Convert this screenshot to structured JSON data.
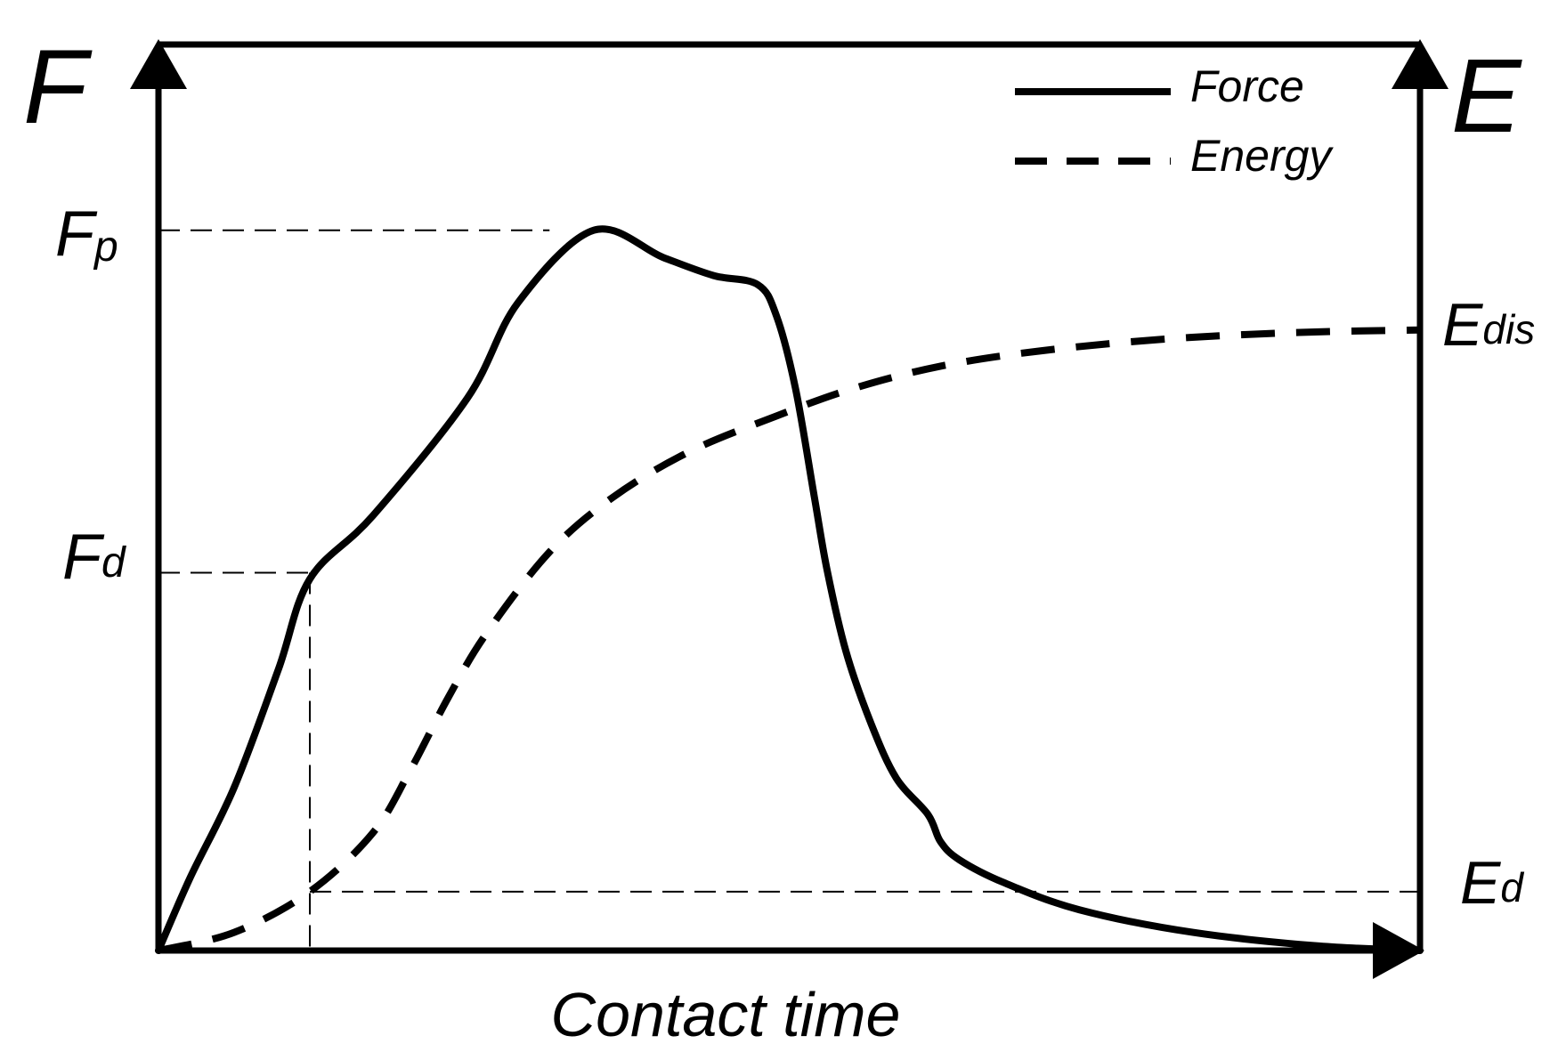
{
  "chart_data": {
    "type": "line",
    "title": "",
    "xlabel": "Contact time",
    "ylabel_left": "F",
    "ylabel_right": "E",
    "xlim": [
      0,
      1
    ],
    "ylim_left": [
      0,
      1
    ],
    "ylim_right": [
      0,
      1
    ],
    "grid": false,
    "legend_position": "top-right",
    "legend": [
      {
        "label": "Force",
        "style": "solid"
      },
      {
        "label": "Energy",
        "style": "dashed"
      }
    ],
    "reference_lines": {
      "Fp": {
        "label_main": "F",
        "label_sub": "p",
        "axis": "left",
        "value": 0.795
      },
      "Fd": {
        "label_main": "F",
        "label_sub": "d",
        "axis": "left",
        "value": 0.417
      },
      "td": {
        "axis": "x",
        "value": 0.12
      },
      "Ed": {
        "label_main": "E",
        "label_sub": "d",
        "axis": "right",
        "value": 0.065
      },
      "Edis": {
        "label_main": "E",
        "label_sub": "dis",
        "axis": "right",
        "value": 0.685
      }
    },
    "series": [
      {
        "name": "Force",
        "style": "solid",
        "x": [
          0,
          0.025,
          0.06,
          0.095,
          0.12,
          0.17,
          0.245,
          0.285,
          0.345,
          0.4,
          0.44,
          0.475,
          0.49,
          0.505,
          0.52,
          0.53,
          0.545,
          0.565,
          0.585,
          0.61,
          0.62,
          0.635,
          0.67,
          0.73,
          0.82,
          0.92,
          1.0
        ],
        "values": [
          0,
          0.08,
          0.18,
          0.31,
          0.41,
          0.48,
          0.61,
          0.715,
          0.795,
          0.765,
          0.745,
          0.735,
          0.7,
          0.62,
          0.5,
          0.42,
          0.33,
          0.25,
          0.19,
          0.15,
          0.12,
          0.1,
          0.075,
          0.045,
          0.02,
          0.005,
          0
        ]
      },
      {
        "name": "Energy",
        "style": "dashed",
        "x": [
          0,
          0.06,
          0.12,
          0.17,
          0.2,
          0.23,
          0.26,
          0.31,
          0.36,
          0.42,
          0.49,
          0.55,
          0.62,
          0.7,
          0.8,
          0.9,
          1.0
        ],
        "values": [
          0,
          0.02,
          0.065,
          0.13,
          0.2,
          0.28,
          0.35,
          0.44,
          0.5,
          0.55,
          0.59,
          0.62,
          0.645,
          0.662,
          0.675,
          0.682,
          0.685
        ]
      }
    ]
  }
}
